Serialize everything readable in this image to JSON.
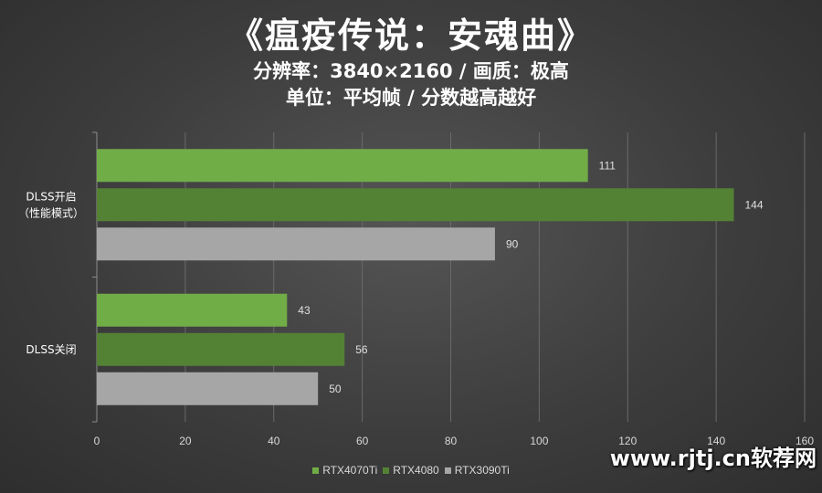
{
  "title": "《瘟疫传说：安魂曲》",
  "subtitle1": "分辨率：3840×2160 / 画质：极高",
  "subtitle2": "单位：平均帧 / 分数越高越好",
  "watermark": "www.rjtj.cn软荐网",
  "colors": {
    "RTX4070Ti": "#70ad47",
    "RTX4080": "#548235",
    "RTX3090Ti": "#a6a6a6"
  },
  "chart_data": {
    "type": "bar",
    "orientation": "horizontal",
    "categories": [
      "DLSS开启\n（性能模式）",
      "DLSS关闭"
    ],
    "series": [
      {
        "name": "RTX4070Ti",
        "values": [
          111,
          43
        ]
      },
      {
        "name": "RTX4080",
        "values": [
          144,
          56
        ]
      },
      {
        "name": "RTX3090Ti",
        "values": [
          90,
          50
        ]
      }
    ],
    "xlim": [
      0,
      160
    ],
    "xticks": [
      0,
      20,
      40,
      60,
      80,
      100,
      120,
      140,
      160
    ],
    "grid": true,
    "legend": "bottom"
  }
}
